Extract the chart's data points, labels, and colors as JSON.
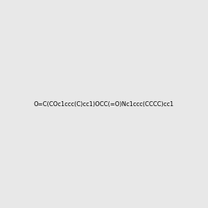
{
  "smiles": "O=C(COc1ccc(C)cc1)OCC(=O)Nc1ccc(CCCC)cc1",
  "image_size": 300,
  "background_color": "#e8e8e8",
  "atom_colors": {
    "O": "#ff0000",
    "N": "#0000ff",
    "C": "#000000"
  }
}
